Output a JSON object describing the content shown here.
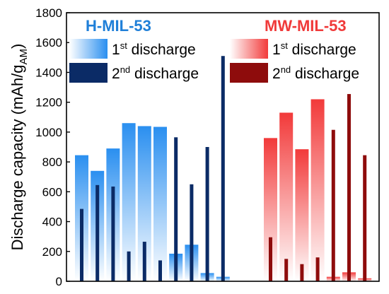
{
  "chart_data": {
    "type": "bar",
    "title": "",
    "ylabel_main": "Discharge capacity (mAh/g",
    "ylabel_sub": "AM",
    "ylabel_close": ")",
    "ylim": [
      0,
      1800
    ],
    "yticks": [
      0,
      200,
      400,
      600,
      800,
      1000,
      1200,
      1400,
      1600,
      1800
    ],
    "grid": false,
    "groups": [
      {
        "name": "H-MIL-53",
        "title_color": "#1f7fd8",
        "first_color": "#2a8ff0",
        "second_color": "#0b2b66",
        "legend_first_sup": "st",
        "legend_second_sup": "nd",
        "legend_first_text": "1",
        "legend_first_rest": " discharge",
        "legend_second_text": "2",
        "legend_second_rest": " discharge",
        "first_discharge": [
          845,
          740,
          890,
          1060,
          1040,
          1035,
          185,
          245,
          55,
          30
        ],
        "second_discharge": [
          485,
          645,
          635,
          200,
          265,
          140,
          965,
          650,
          900,
          1510
        ]
      },
      {
        "name": "MW-MIL-53",
        "title_color": "#f03a3a",
        "first_color": "#f23a3a",
        "second_color": "#8e0c0c",
        "legend_first_sup": "st",
        "legend_second_sup": "nd",
        "legend_first_text": "1",
        "legend_first_rest": " discharge",
        "legend_second_text": "2",
        "legend_second_rest": " discharge",
        "first_discharge": [
          960,
          1130,
          885,
          1220,
          30,
          60,
          20
        ],
        "second_discharge": [
          295,
          150,
          115,
          160,
          1015,
          1255,
          845
        ]
      }
    ]
  }
}
